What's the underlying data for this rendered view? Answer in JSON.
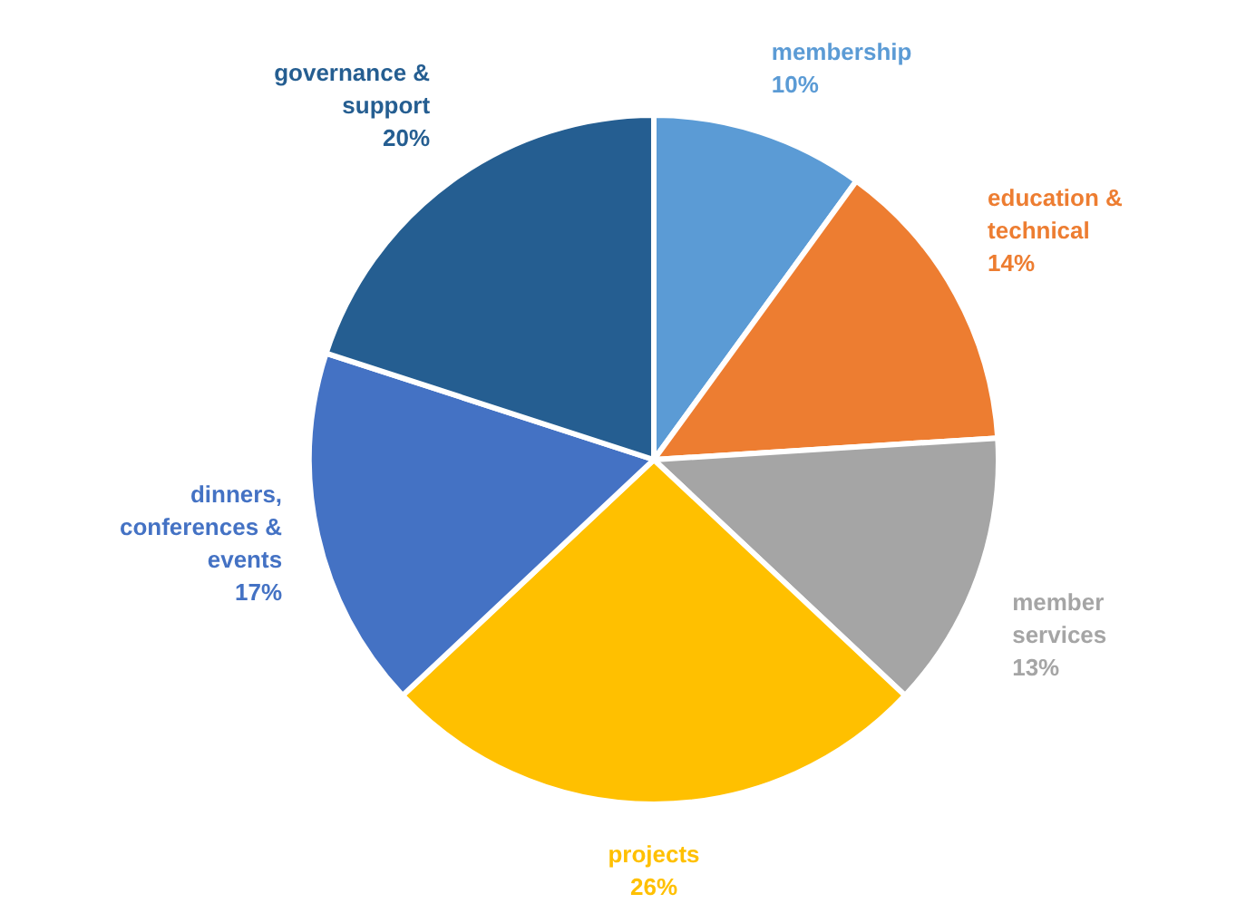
{
  "chart_data": {
    "type": "pie",
    "categories": [
      "membership",
      "education & technical",
      "member services",
      "projects",
      "dinners, conferences & events",
      "governance & support"
    ],
    "values": [
      10,
      14,
      13,
      26,
      17,
      20
    ],
    "value_labels": [
      "10%",
      "14%",
      "13%",
      "26%",
      "17%",
      "20%"
    ],
    "colors": [
      "#5b9bd5",
      "#ed7d31",
      "#a5a5a5",
      "#ffc000",
      "#4472c4",
      "#255e91"
    ]
  }
}
